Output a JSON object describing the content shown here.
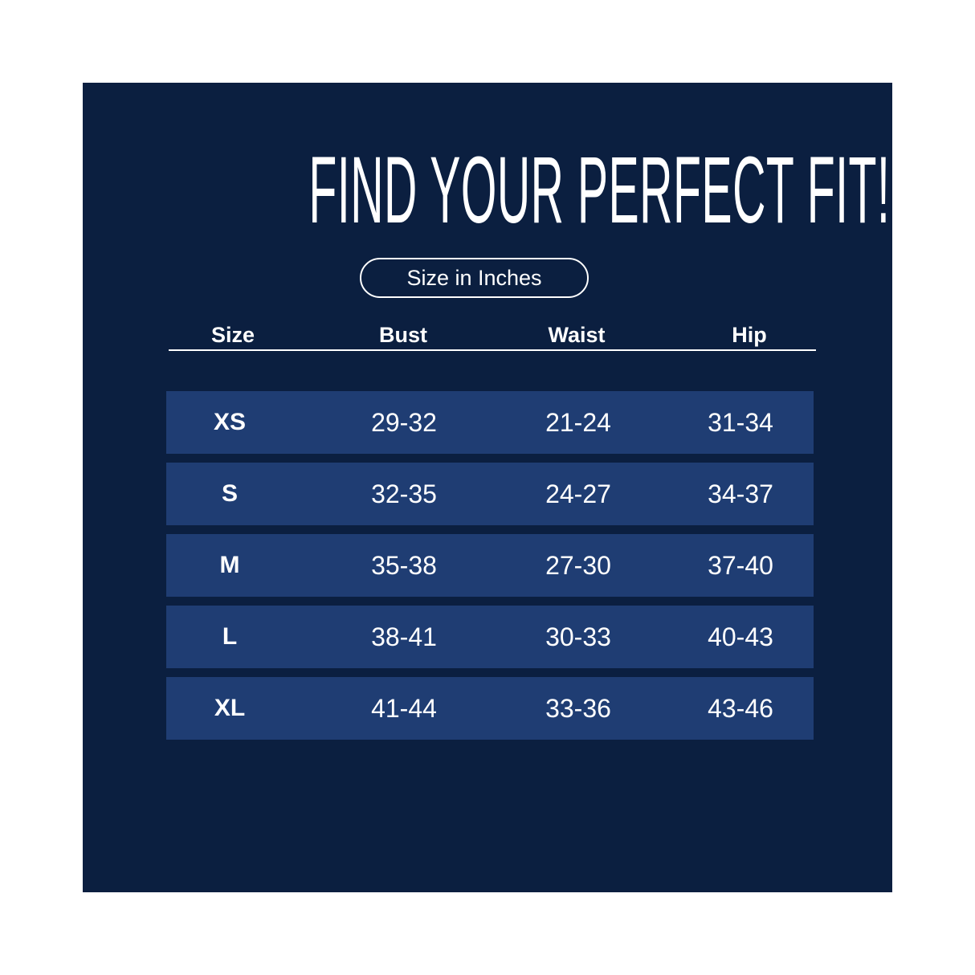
{
  "title": "FIND YOUR PERFECT FIT!",
  "unit_badge": "Size in Inches",
  "colors": {
    "background": "#0b1f40",
    "row": "#1f3d73",
    "text": "#ffffff"
  },
  "headers": [
    "Size",
    "Bust",
    "Waist",
    "Hip"
  ],
  "rows": [
    [
      "XS",
      "29-32",
      "21-24",
      "31-34"
    ],
    [
      "S",
      "32-35",
      "24-27",
      "34-37"
    ],
    [
      "M",
      "35-38",
      "27-30",
      "37-40"
    ],
    [
      "L",
      "38-41",
      "30-33",
      "40-43"
    ],
    [
      "XL",
      "41-44",
      "33-36",
      "43-46"
    ]
  ]
}
